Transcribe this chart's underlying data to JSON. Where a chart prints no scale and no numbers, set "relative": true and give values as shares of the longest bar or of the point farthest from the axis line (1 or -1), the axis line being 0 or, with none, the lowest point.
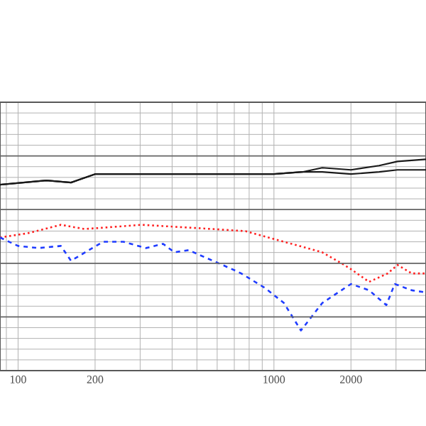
{
  "chart_data": {
    "type": "line",
    "relative": true,
    "log": "x",
    "grid": true,
    "xlim": [
      85,
      3930
    ],
    "xticks": [
      {
        "value": 90,
        "label": null
      },
      100,
      200,
      {
        "value": 300,
        "label": null
      },
      {
        "value": 400,
        "label": null
      },
      {
        "value": 500,
        "label": null
      },
      {
        "value": 600,
        "label": null
      },
      {
        "value": 700,
        "label": null
      },
      {
        "value": 800,
        "label": null
      },
      {
        "value": 900,
        "label": null
      },
      1000,
      2000,
      {
        "value": 3000,
        "label": null
      }
    ],
    "series": [
      {
        "color": "#1a1a1a",
        "line_style": "solid",
        "x": [
          85,
          129,
          161,
          200,
          304,
          464,
          717,
          1000,
          1292,
          1545,
          2000,
          2577,
          3040,
          3930
        ],
        "values": [
          0.88,
          0.9,
          0.89,
          0.93,
          0.93,
          0.93,
          0.93,
          0.93,
          0.94,
          0.96,
          0.95,
          0.97,
          0.99,
          1
        ]
      },
      {
        "color": "#1a1a1a",
        "line_style": "solid",
        "x": [
          85,
          129,
          161,
          200,
          304,
          464,
          717,
          1000,
          1292,
          1545,
          2000,
          2577,
          3040,
          3930
        ],
        "values": [
          0.88,
          0.9,
          0.89,
          0.93,
          0.93,
          0.93,
          0.93,
          0.93,
          0.94,
          0.94,
          0.93,
          0.94,
          0.95,
          0.95
        ]
      },
      {
        "color": "#ff2020",
        "line_style": "dotted",
        "x": [
          85,
          109,
          147,
          182,
          304,
          577,
          774,
          1094,
          1545,
          1825,
          2000,
          2355,
          2783,
          3040,
          3459,
          3930
        ],
        "values": [
          0.63,
          0.65,
          0.69,
          0.67,
          0.69,
          0.67,
          0.66,
          0.61,
          0.56,
          0.51,
          0.48,
          0.42,
          0.46,
          0.5,
          0.46,
          0.46
        ]
      },
      {
        "color": "#1f3cff",
        "line_style": "dashed",
        "x": [
          85,
          100,
          120,
          147,
          161,
          215,
          258,
          316,
          369,
          408,
          464,
          577,
          717,
          745,
          926,
          1094,
          1275,
          1545,
          2000,
          2355,
          2750,
          2966,
          3459,
          3930
        ],
        "values": [
          0.63,
          0.59,
          0.58,
          0.59,
          0.52,
          0.61,
          0.61,
          0.58,
          0.6,
          0.56,
          0.57,
          0.52,
          0.47,
          0.46,
          0.39,
          0.32,
          0.19,
          0.32,
          0.41,
          0.38,
          0.31,
          0.41,
          0.38,
          0.37
        ]
      }
    ]
  }
}
